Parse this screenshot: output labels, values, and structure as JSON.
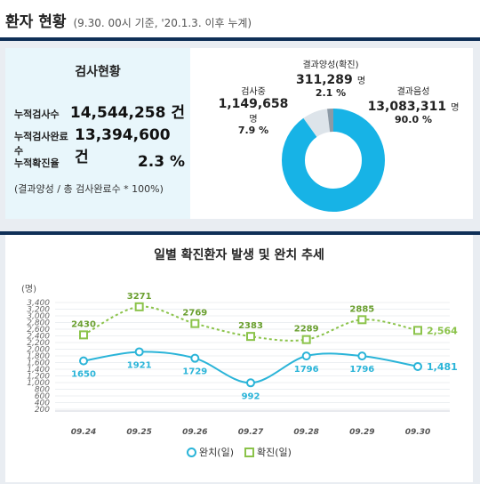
{
  "header": {
    "title": "환자 현황",
    "subtitle": "(9.30. 00시 기준, '20.1.3. 이후 누계)"
  },
  "test_status": {
    "title": "검사현황",
    "rows": [
      {
        "label": "누적검사수",
        "value": "14,544,258 건"
      },
      {
        "label": "누적검사완료수",
        "value": "13,394,600 건"
      },
      {
        "label": "누적확진율",
        "value": "2.3 %"
      }
    ],
    "note": "(결과양성 / 총 검사완료수 * 100%)"
  },
  "pie": {
    "positive": {
      "label": "결과양성(확진)",
      "value": "311,289",
      "unit": "명",
      "percent": "2.1 %",
      "pct": 2.1,
      "color": "#8c9aa6"
    },
    "testing": {
      "label": "검사중",
      "value": "1,149,658",
      "unit": "명",
      "percent": "7.9 %",
      "pct": 7.9,
      "color": "#dde4ea"
    },
    "negative": {
      "label": "결과음성",
      "value": "13,083,311",
      "unit": "명",
      "percent": "90.0 %",
      "pct": 90.0,
      "color": "#17b3e6"
    }
  },
  "chart_data": {
    "type": "line",
    "title": "일별 확진환자 발생 및 완치 추세",
    "ylabel": "(명)",
    "ylim": [
      200,
      3400
    ],
    "yticks": [
      "3,400",
      "3,200",
      "3,000",
      "2,800",
      "2,600",
      "2,400",
      "2,200",
      "2,000",
      "1,800",
      "1,600",
      "1,400",
      "1,200",
      "1,000",
      "800",
      "600",
      "400",
      "200"
    ],
    "categories": [
      "09.24",
      "09.25",
      "09.26",
      "09.27",
      "09.28",
      "09.29",
      "09.30"
    ],
    "series": [
      {
        "name": "완치(일)",
        "values": [
          1650,
          1921,
          1729,
          992,
          1796,
          1796,
          1481
        ],
        "labels": [
          "1650",
          "1921",
          "1729",
          "992",
          "1796",
          "1796",
          "1,481"
        ],
        "color": "#2ab4d8"
      },
      {
        "name": "확진(일)",
        "values": [
          2430,
          3271,
          2769,
          2383,
          2289,
          2885,
          2564
        ],
        "labels": [
          "2430",
          "3271",
          "2769",
          "2383",
          "2289",
          "2885",
          "2,564"
        ],
        "color": "#8bc34a"
      }
    ]
  }
}
